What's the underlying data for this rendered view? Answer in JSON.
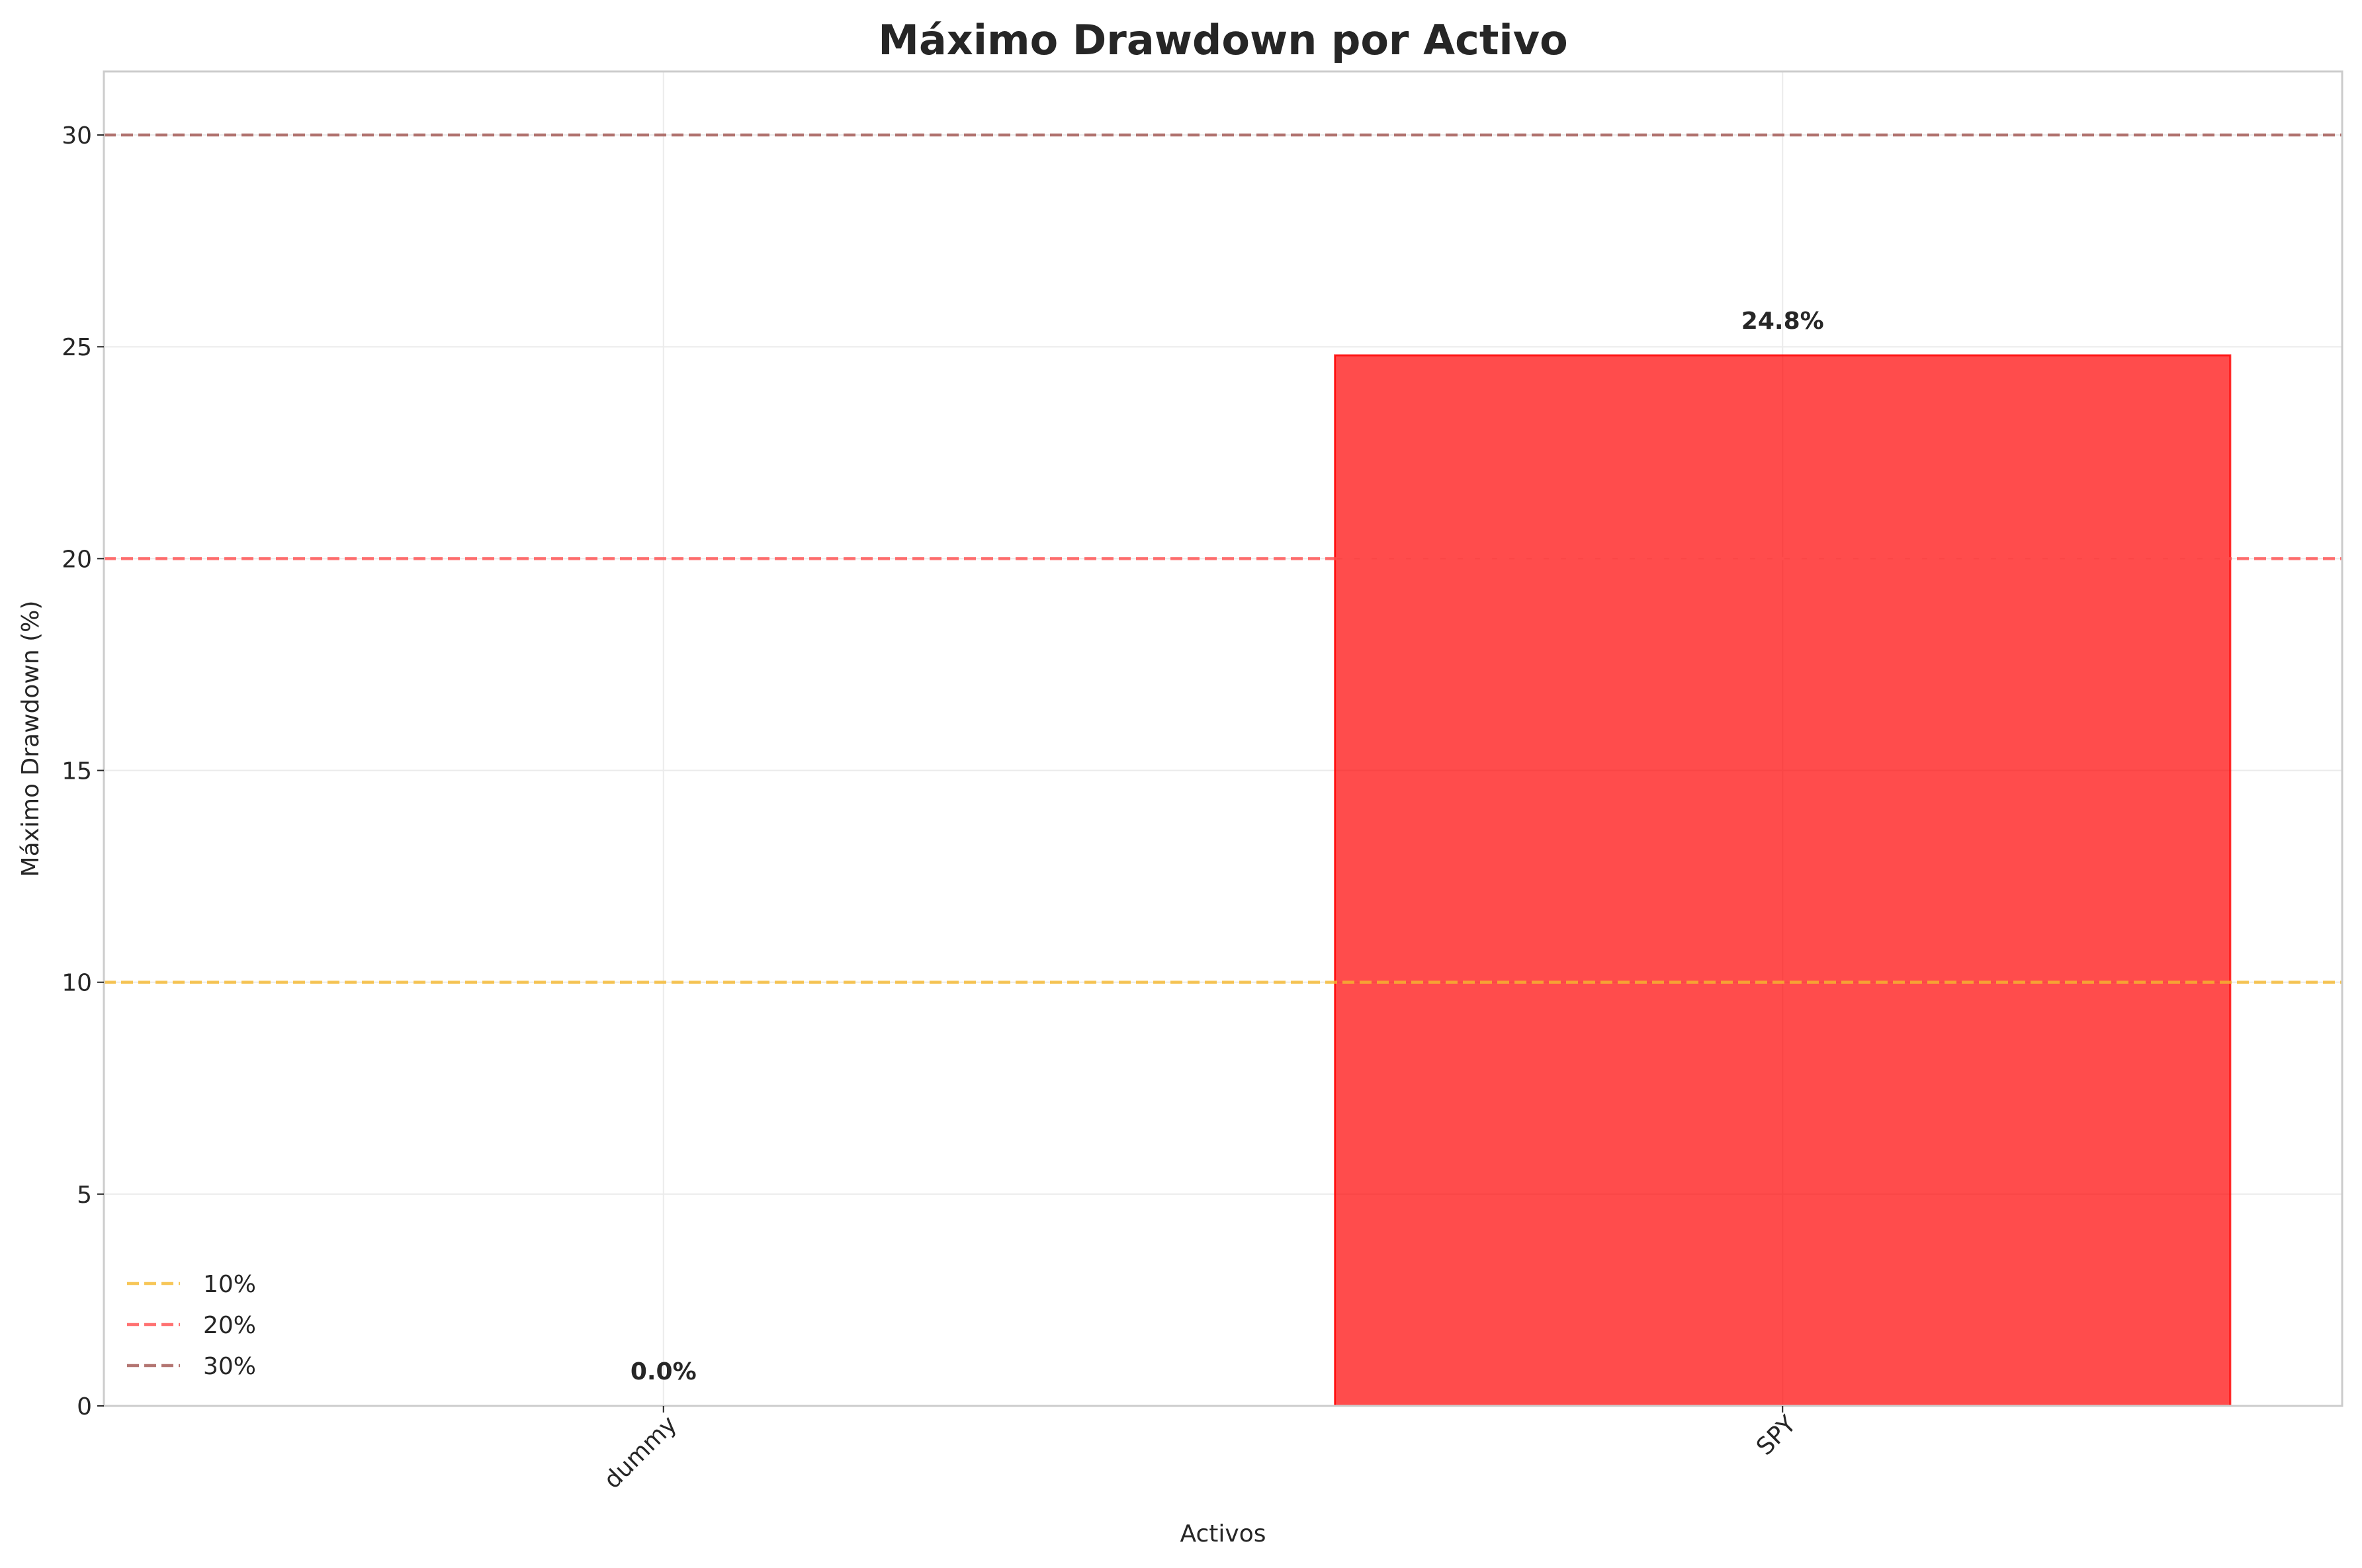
{
  "chart_data": {
    "type": "bar",
    "title": "Máximo Drawdown por Activo",
    "xlabel": "Activos",
    "ylabel": "Máximo Drawdown (%)",
    "categories": [
      "dummy",
      "SPY"
    ],
    "values": [
      0.0,
      24.8
    ],
    "data_labels": [
      "0.0%",
      "24.8%"
    ],
    "bar_colors": [
      "#ff0000",
      "#ff0000"
    ],
    "ylim": [
      0,
      31.5
    ],
    "yticks": [
      0,
      5,
      10,
      15,
      20,
      25,
      30
    ],
    "grid": true,
    "reference_lines": [
      {
        "name": "10%",
        "value": 10,
        "color": "#f5b82e",
        "style": "dashed"
      },
      {
        "name": "20%",
        "value": 20,
        "color": "#ff4d4d",
        "style": "dashed"
      },
      {
        "name": "30%",
        "value": 30,
        "color": "#a0524d",
        "style": "dashed"
      }
    ],
    "legend_placement": "lower-left"
  }
}
